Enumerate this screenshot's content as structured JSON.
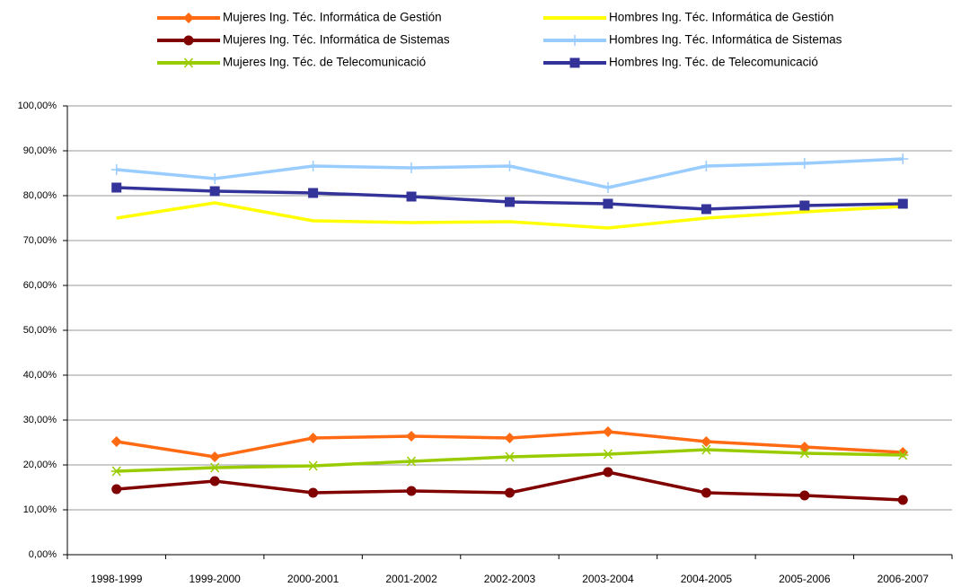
{
  "chart_data": {
    "type": "line",
    "categories": [
      "1998-1999",
      "1999-2000",
      "2000-2001",
      "2001-2002",
      "2002-2003",
      "2003-2004",
      "2004-2005",
      "2005-2006",
      "2006-2007"
    ],
    "series": [
      {
        "name": "Mujeres Ing. Téc. Informática de Gestión",
        "color": "#ff6a13",
        "marker": "diamond",
        "values": [
          25.2,
          21.8,
          26,
          26.4,
          26,
          27.4,
          25.2,
          24,
          22.8
        ]
      },
      {
        "name": "Hombres  Ing. Téc. Informática de Gestión",
        "color": "#ffff00",
        "marker": "none",
        "values": [
          75,
          78.4,
          74.4,
          74,
          74.2,
          72.8,
          75,
          76.4,
          77.6
        ]
      },
      {
        "name": "Mujeres Ing. Téc. Informática de Sistemas",
        "color": "#800000",
        "marker": "circle",
        "values": [
          14.6,
          16.4,
          13.8,
          14.2,
          13.8,
          18.4,
          13.8,
          13.2,
          12.2
        ]
      },
      {
        "name": "Hombres  Ing. Téc. Informática de Sistemas",
        "color": "#99ccff",
        "marker": "plus",
        "values": [
          85.8,
          83.8,
          86.6,
          86.2,
          86.6,
          81.8,
          86.6,
          87.2,
          88.2
        ]
      },
      {
        "name": "Mujeres  Ing. Téc. de Telecomunicació",
        "color": "#99cc00",
        "marker": "asterisk",
        "values": [
          18.6,
          19.4,
          19.8,
          20.8,
          21.8,
          22.4,
          23.4,
          22.6,
          22.2
        ]
      },
      {
        "name": "Hombres  Ing. Téc. de Telecomunicació",
        "color": "#333399",
        "marker": "square",
        "values": [
          81.8,
          81,
          80.6,
          79.8,
          78.6,
          78.2,
          77,
          77.8,
          78.2
        ]
      }
    ],
    "ylim": [
      0,
      100
    ],
    "yticks": [
      {
        "value": 0,
        "label": "0,00%"
      },
      {
        "value": 10,
        "label": "10,00%"
      },
      {
        "value": 20,
        "label": "20,00%"
      },
      {
        "value": 30,
        "label": "30,00%"
      },
      {
        "value": 40,
        "label": "40,00%"
      },
      {
        "value": 50,
        "label": "50,00%"
      },
      {
        "value": 60,
        "label": "60,00%"
      },
      {
        "value": 70,
        "label": "70,00%"
      },
      {
        "value": 80,
        "label": "80,00%"
      },
      {
        "value": 90,
        "label": "90,00%"
      },
      {
        "value": 100,
        "label": "100,00%"
      }
    ],
    "grid": true,
    "legend": "top"
  }
}
